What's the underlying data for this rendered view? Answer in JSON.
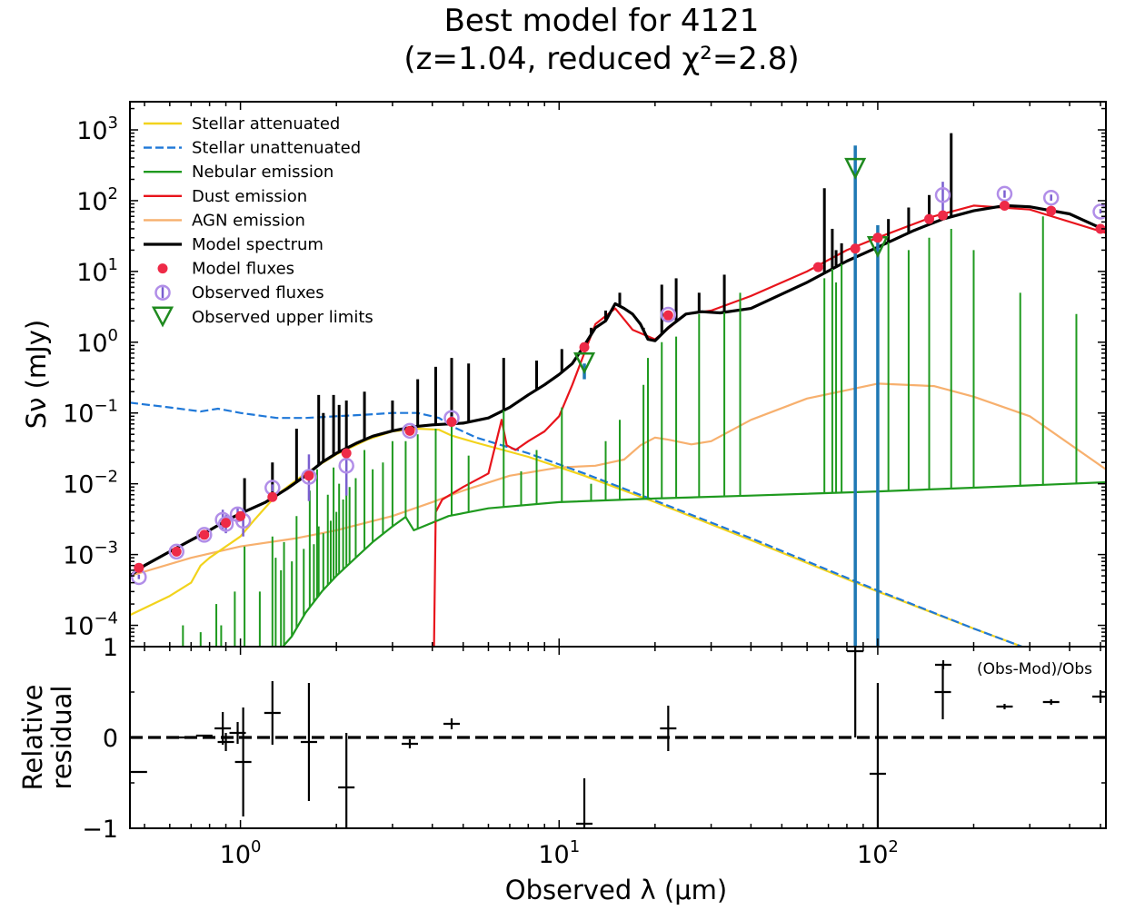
{
  "chart_data": [
    {
      "type": "line",
      "panel": "sed",
      "title": "Best model for 4121",
      "subtitle": "(z=1.04, reduced χ²=2.8)",
      "xlabel": "Observed λ (μm)",
      "ylabel": "Sν (mJy)",
      "xscale": "log",
      "yscale": "log",
      "xlim": [
        0.45,
        520
      ],
      "ylim": [
        5e-05,
        2500
      ],
      "y_tick_labels": [
        {
          "base": "10",
          "exp": "3",
          "value": 1000
        },
        {
          "base": "10",
          "exp": "2",
          "value": 100
        },
        {
          "base": "10",
          "exp": "1",
          "value": 10
        },
        {
          "base": "10",
          "exp": "0",
          "value": 1
        },
        {
          "base": "10",
          "exp": "−1",
          "value": 0.1
        },
        {
          "base": "10",
          "exp": "−2",
          "value": 0.01
        },
        {
          "base": "10",
          "exp": "−3",
          "value": 0.001
        },
        {
          "base": "10",
          "exp": "−4",
          "value": 0.0001
        }
      ],
      "legend_position": "top-left",
      "grid": false,
      "series": [
        {
          "name": "Stellar attenuated",
          "color": "#f2d31c",
          "style": "solid",
          "x": [
            0.45,
            0.6,
            0.7,
            0.75,
            0.8,
            0.9,
            1.0,
            1.1,
            1.3,
            1.6,
            2.0,
            2.5,
            3.0,
            3.6,
            4.2,
            4.6,
            5.5,
            8,
            12,
            20,
            40,
            100,
            200,
            520
          ],
          "y": [
            0.00014,
            0.00026,
            0.0004,
            0.0007,
            0.0009,
            0.0013,
            0.0018,
            0.003,
            0.007,
            0.014,
            0.026,
            0.042,
            0.055,
            0.06,
            0.058,
            0.048,
            0.038,
            0.024,
            0.013,
            0.0055,
            0.0016,
            0.0003,
            9e-05,
            1.8e-05
          ]
        },
        {
          "name": "Stellar unattenuated",
          "color": "#1f78d8",
          "style": "dashed",
          "x": [
            0.45,
            0.6,
            0.75,
            0.85,
            1.0,
            1.3,
            1.6,
            2.0,
            2.5,
            3.0,
            3.6,
            4.2,
            4.6,
            5.5,
            8,
            12,
            20,
            40,
            100,
            200,
            520
          ],
          "y": [
            0.14,
            0.12,
            0.105,
            0.115,
            0.1,
            0.085,
            0.085,
            0.09,
            0.095,
            0.1,
            0.1,
            0.085,
            0.065,
            0.045,
            0.027,
            0.014,
            0.0058,
            0.0017,
            0.00031,
            9e-05,
            1.8e-05
          ]
        },
        {
          "name": "Nebular emission",
          "color": "#1f9a1f",
          "style": "solid",
          "x": [
            1.1,
            1.3,
            1.45,
            1.6,
            1.8,
            2.0,
            2.3,
            2.6,
            3.0,
            3.3,
            3.5,
            4.5,
            6,
            10,
            20,
            40,
            100,
            200,
            520
          ],
          "y": [
            2e-05,
            4e-05,
            7e-05,
            0.00015,
            0.0003,
            0.0005,
            0.0009,
            0.0015,
            0.0025,
            0.0034,
            0.0022,
            0.0035,
            0.0045,
            0.0055,
            0.0062,
            0.0068,
            0.0078,
            0.0088,
            0.0105
          ]
        },
        {
          "name": "Dust emission",
          "color": "#e8141c",
          "style": "solid",
          "x": [
            4.05,
            4.1,
            4.3,
            5,
            6,
            6.6,
            6.85,
            7.3,
            8,
            9,
            10,
            11,
            12,
            13,
            15,
            17,
            20,
            25,
            30,
            40,
            60,
            80,
            100,
            150,
            200,
            300,
            520
          ],
          "y": [
            5e-05,
            0.004,
            0.006,
            0.009,
            0.014,
            0.08,
            0.035,
            0.03,
            0.04,
            0.055,
            0.09,
            0.25,
            0.7,
            1.8,
            3.0,
            1.5,
            1.1,
            2.5,
            2.8,
            4.5,
            10,
            20,
            30,
            60,
            85,
            75,
            35
          ]
        },
        {
          "name": "AGN emission",
          "color": "#f7b06e",
          "style": "solid",
          "x": [
            0.45,
            0.7,
            1.0,
            1.5,
            2,
            3,
            4,
            5,
            7,
            10,
            13,
            16,
            18,
            20,
            22,
            26,
            30,
            40,
            60,
            100,
            150,
            200,
            300,
            520
          ],
          "y": [
            0.0005,
            0.0009,
            0.0013,
            0.0017,
            0.0022,
            0.0035,
            0.0055,
            0.008,
            0.013,
            0.017,
            0.018,
            0.022,
            0.035,
            0.045,
            0.042,
            0.036,
            0.04,
            0.08,
            0.16,
            0.26,
            0.24,
            0.17,
            0.09,
            0.016
          ]
        },
        {
          "name": "Model spectrum",
          "color": "#000000",
          "style": "solid",
          "x": [
            0.45,
            0.5,
            0.6,
            0.7,
            0.8,
            0.9,
            1.0,
            1.2,
            1.4,
            1.6,
            1.8,
            2.0,
            2.3,
            2.6,
            3.0,
            3.5,
            4.0,
            4.5,
            5.0,
            6.0,
            7.0,
            8.0,
            9.0,
            10,
            11,
            12,
            13,
            14,
            15,
            16,
            17,
            18,
            19,
            20,
            22,
            25,
            28,
            32,
            40,
            60,
            80,
            100,
            130,
            160,
            200,
            250,
            300,
            400,
            520
          ],
          "y": [
            0.0005,
            0.0007,
            0.0011,
            0.0016,
            0.0022,
            0.003,
            0.0038,
            0.0055,
            0.0085,
            0.013,
            0.02,
            0.027,
            0.037,
            0.047,
            0.056,
            0.064,
            0.068,
            0.07,
            0.072,
            0.085,
            0.12,
            0.18,
            0.25,
            0.35,
            0.5,
            0.9,
            1.6,
            2.0,
            3.5,
            3.0,
            2.5,
            1.8,
            1.1,
            1.05,
            1.6,
            2.5,
            2.7,
            2.6,
            3.0,
            7,
            14,
            22,
            38,
            55,
            72,
            85,
            82,
            65,
            38
          ]
        }
      ],
      "emission_lines": {
        "nebular_x": [
          0.66,
          0.75,
          0.84,
          0.87,
          0.96,
          1.03,
          1.15,
          1.26,
          1.29,
          1.34,
          1.37,
          1.45,
          1.5,
          1.58,
          1.65,
          1.7,
          1.74,
          1.76,
          1.82,
          1.88,
          1.92,
          1.96,
          2.0,
          2.04,
          2.1,
          2.15,
          2.2,
          2.3,
          2.45,
          2.6,
          2.8,
          3.0,
          3.3,
          3.6,
          4.1,
          4.6,
          5.2,
          6.7,
          7.6,
          8.5,
          10.2,
          12.6,
          14.0,
          15.5,
          18.4,
          19.0,
          21.0,
          23.3,
          27.5,
          33.0,
          37.0,
          68.0,
          72.0,
          74.0,
          77.0,
          85.0,
          108.0,
          125.0,
          145.0,
          170.0,
          200.0,
          280.0,
          330.0,
          420.0
        ],
        "nebular_peak": [
          0.0001,
          8e-05,
          0.0002,
          0.0001,
          0.0003,
          0.0013,
          0.0003,
          0.0018,
          0.0009,
          0.0006,
          0.0015,
          0.0008,
          0.0035,
          0.0012,
          0.008,
          0.0014,
          0.016,
          0.0025,
          0.002,
          0.007,
          0.003,
          0.017,
          0.004,
          0.01,
          0.006,
          0.02,
          0.009,
          0.012,
          0.03,
          0.016,
          0.02,
          0.04,
          0.04,
          0.05,
          0.06,
          0.12,
          0.025,
          0.12,
          0.015,
          0.03,
          0.12,
          0.01,
          0.04,
          0.08,
          0.25,
          0.6,
          1.0,
          1.2,
          2.5,
          3.0,
          5.0,
          8.0,
          25.0,
          7.0,
          15.0,
          4.0,
          40.0,
          20.0,
          30.0,
          40.0,
          20.0,
          5.0,
          60.0,
          2.5
        ],
        "model_line_x": [
          1.03,
          1.26,
          1.5,
          1.76,
          1.82,
          1.96,
          2.04,
          2.15,
          2.45,
          3.0,
          3.6,
          4.1,
          4.6,
          5.2,
          6.7,
          8.5,
          10.2,
          12.6,
          14.0,
          15.5,
          18.4,
          21.0,
          23.3,
          27.5,
          33.0,
          68.0,
          72.0,
          74.0,
          77.0,
          108.0,
          125.0,
          145.0,
          170.0
        ],
        "model_line_peak": [
          0.012,
          0.02,
          0.06,
          0.18,
          0.1,
          0.18,
          0.13,
          0.15,
          0.2,
          0.15,
          0.3,
          0.45,
          0.6,
          0.5,
          0.6,
          0.55,
          0.8,
          1.6,
          2.8,
          5.0,
          1.6,
          6.5,
          8.0,
          5.0,
          9.0,
          150.0,
          40.0,
          20.0,
          25.0,
          55.0,
          80.0,
          120.0,
          900.0
        ]
      },
      "model_fluxes": {
        "name": "Model fluxes",
        "color": "#ee2a47",
        "x": [
          0.48,
          0.63,
          0.77,
          0.9,
          1.0,
          1.26,
          1.64,
          2.15,
          3.4,
          4.6,
          12.0,
          22.0,
          65.0,
          85.0,
          100.0,
          145.0,
          160.0,
          250.0,
          350.0,
          500.0
        ],
        "y": [
          0.00065,
          0.0011,
          0.0019,
          0.0028,
          0.0035,
          0.0065,
          0.013,
          0.027,
          0.056,
          0.075,
          0.85,
          2.4,
          11.5,
          21.0,
          30.0,
          55.0,
          62.0,
          85.0,
          72.0,
          40.0
        ]
      },
      "observed_fluxes": {
        "name": "Observed fluxes",
        "color": "#b18ee8",
        "x": [
          0.48,
          0.63,
          0.77,
          0.88,
          0.9,
          0.98,
          1.02,
          1.26,
          1.64,
          2.15,
          3.4,
          4.6,
          22.0,
          160.0,
          250.0,
          350.0,
          500.0
        ],
        "y": [
          0.00048,
          0.0011,
          0.0019,
          0.0031,
          0.0027,
          0.0037,
          0.003,
          0.0088,
          0.0125,
          0.018,
          0.056,
          0.085,
          2.45,
          120.0,
          125.0,
          110.0,
          70.0
        ],
        "yerr_lo": [
          0.00045,
          0.001,
          0.0018,
          0.0022,
          0.002,
          0.0029,
          0.0018,
          0.0078,
          0.0057,
          0.0068,
          0.053,
          0.08,
          2.3,
          58.0,
          110.0,
          100.0,
          66.0
        ],
        "yerr_hi": [
          0.00052,
          0.0012,
          0.002,
          0.0043,
          0.0036,
          0.0045,
          0.0043,
          0.0098,
          0.026,
          0.028,
          0.059,
          0.09,
          2.6,
          185.0,
          140.0,
          122.0,
          76.0
        ]
      },
      "upper_limits": {
        "name": "Observed upper limits",
        "color": "#1f8a1f",
        "err_color": "#1f78b4",
        "x": [
          12.0,
          85.0,
          100.0
        ],
        "y": [
          0.5,
          280.0,
          22.0
        ],
        "bar_top": [
          0.5,
          600.0,
          45.0
        ],
        "bar_bottom": [
          0.3,
          5e-05,
          5e-05
        ]
      }
    },
    {
      "type": "scatter",
      "panel": "residual",
      "xlabel": "Observed λ (μm)",
      "ylabel": "Relative residual",
      "xscale": "log",
      "xlim": [
        0.45,
        520
      ],
      "ylim": [
        -1,
        1
      ],
      "y_ticks": [
        {
          "label": "1",
          "value": 1
        },
        {
          "label": "0",
          "value": 0
        },
        {
          "label": "−1",
          "value": -1
        }
      ],
      "x_tick_labels": [
        {
          "base": "10",
          "exp": "0",
          "value": 1
        },
        {
          "base": "10",
          "exp": "1",
          "value": 10
        },
        {
          "base": "10",
          "exp": "2",
          "value": 100
        }
      ],
      "annotation": "(Obs-Mod)/Obs",
      "zero_line": "dashed",
      "points": {
        "x": [
          0.48,
          0.63,
          0.77,
          0.88,
          0.9,
          0.98,
          1.02,
          1.26,
          1.64,
          2.15,
          3.4,
          4.6,
          12.0,
          22.0,
          85.0,
          100.0,
          160.0,
          160.5,
          250.0,
          350.0,
          500.0
        ],
        "y": [
          -0.38,
          0.0,
          0.02,
          0.1,
          -0.05,
          0.05,
          -0.27,
          0.27,
          -0.05,
          -0.55,
          -0.07,
          0.15,
          -0.95,
          0.1,
          0.95,
          -0.4,
          0.5,
          0.8,
          0.34,
          0.39,
          0.45
        ],
        "err": [
          0.0,
          0.0,
          0.0,
          0.18,
          0.1,
          0.12,
          0.6,
          0.35,
          0.65,
          0.6,
          0.05,
          0.06,
          0.5,
          0.25,
          0.95,
          1.0,
          0.3,
          0.05,
          0.03,
          0.03,
          0.07
        ]
      }
    }
  ],
  "legend_items": [
    {
      "label": "Stellar attenuated",
      "kind": "line",
      "color": "#f2d31c",
      "style": "solid"
    },
    {
      "label": "Stellar unattenuated",
      "kind": "line",
      "color": "#1f78d8",
      "style": "dashed"
    },
    {
      "label": "Nebular emission",
      "kind": "line",
      "color": "#1f9a1f",
      "style": "solid"
    },
    {
      "label": "Dust emission",
      "kind": "line",
      "color": "#e8141c",
      "style": "solid"
    },
    {
      "label": "AGN emission",
      "kind": "line",
      "color": "#f7b06e",
      "style": "solid"
    },
    {
      "label": "Model spectrum",
      "kind": "line",
      "color": "#000000",
      "style": "solid"
    },
    {
      "label": "Model fluxes",
      "kind": "dot",
      "color": "#ee2a47"
    },
    {
      "label": "Observed fluxes",
      "kind": "circle",
      "color": "#b18ee8"
    },
    {
      "label": "Observed upper limits",
      "kind": "triangle",
      "color": "#1f8a1f"
    }
  ]
}
